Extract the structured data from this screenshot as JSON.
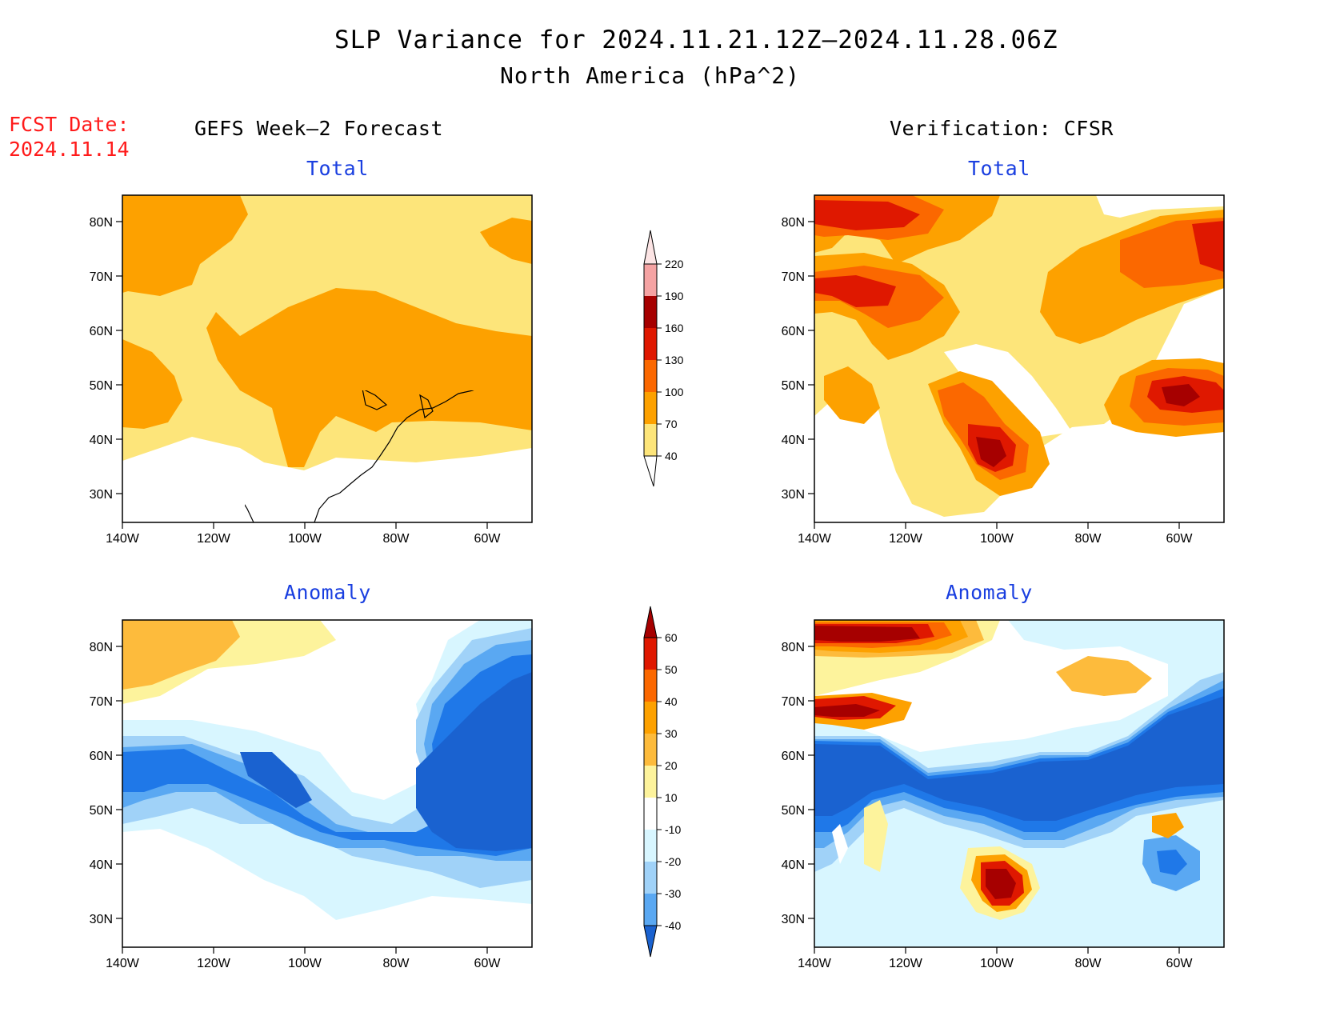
{
  "title": "SLP Variance for 2024.11.21.12Z–2024.11.28.06Z",
  "subtitle": "North America (hPa^2)",
  "fcst_date_label": "FCST Date:",
  "fcst_date": "2024.11.14",
  "left_heading": "GEFS Week–2 Forecast",
  "right_heading": "Verification: CFSR",
  "panel_titles": {
    "top": "Total",
    "bottom": "Anomaly"
  },
  "lat_ticks": [
    "80N",
    "70N",
    "60N",
    "50N",
    "40N",
    "30N"
  ],
  "lon_ticks": [
    "140W",
    "120W",
    "100W",
    "80W",
    "60W"
  ],
  "total_colorbar": {
    "levels": [
      "40",
      "70",
      "100",
      "130",
      "160",
      "190",
      "220"
    ],
    "colors": [
      "#fde57a",
      "#fda100",
      "#fb6800",
      "#df1800",
      "#a60000",
      "#f5a3a3",
      "#fce4e4"
    ]
  },
  "anomaly_colorbar": {
    "levels": [
      "60",
      "50",
      "40",
      "30",
      "20",
      "10",
      "-10",
      "-20",
      "-30",
      "-40"
    ],
    "colors": [
      "#a60000",
      "#df1800",
      "#fb6800",
      "#fda100",
      "#fdbb3c",
      "#fdf39c",
      "#ffffff",
      "#d8f6ff",
      "#a0d2f8",
      "#5aa8f2",
      "#1f78e8",
      "#1a62d0"
    ]
  },
  "chart_data": [
    {
      "type": "heatmap",
      "title": "Total",
      "panel": "GEFS Week–2 Forecast",
      "levels": [
        40,
        70,
        100,
        130,
        160,
        190,
        220
      ]
    },
    {
      "type": "heatmap",
      "title": "Total",
      "panel": "Verification: CFSR",
      "levels": [
        40,
        70,
        100,
        130,
        160,
        190,
        220
      ]
    },
    {
      "type": "heatmap",
      "title": "Anomaly",
      "panel": "GEFS Week–2 Forecast",
      "levels": [
        -40,
        -30,
        -20,
        -10,
        10,
        20,
        30,
        40,
        50,
        60
      ]
    },
    {
      "type": "heatmap",
      "title": "Anomaly",
      "panel": "Verification: CFSR",
      "levels": [
        -40,
        -30,
        -20,
        -10,
        10,
        20,
        30,
        40,
        50,
        60
      ]
    }
  ]
}
